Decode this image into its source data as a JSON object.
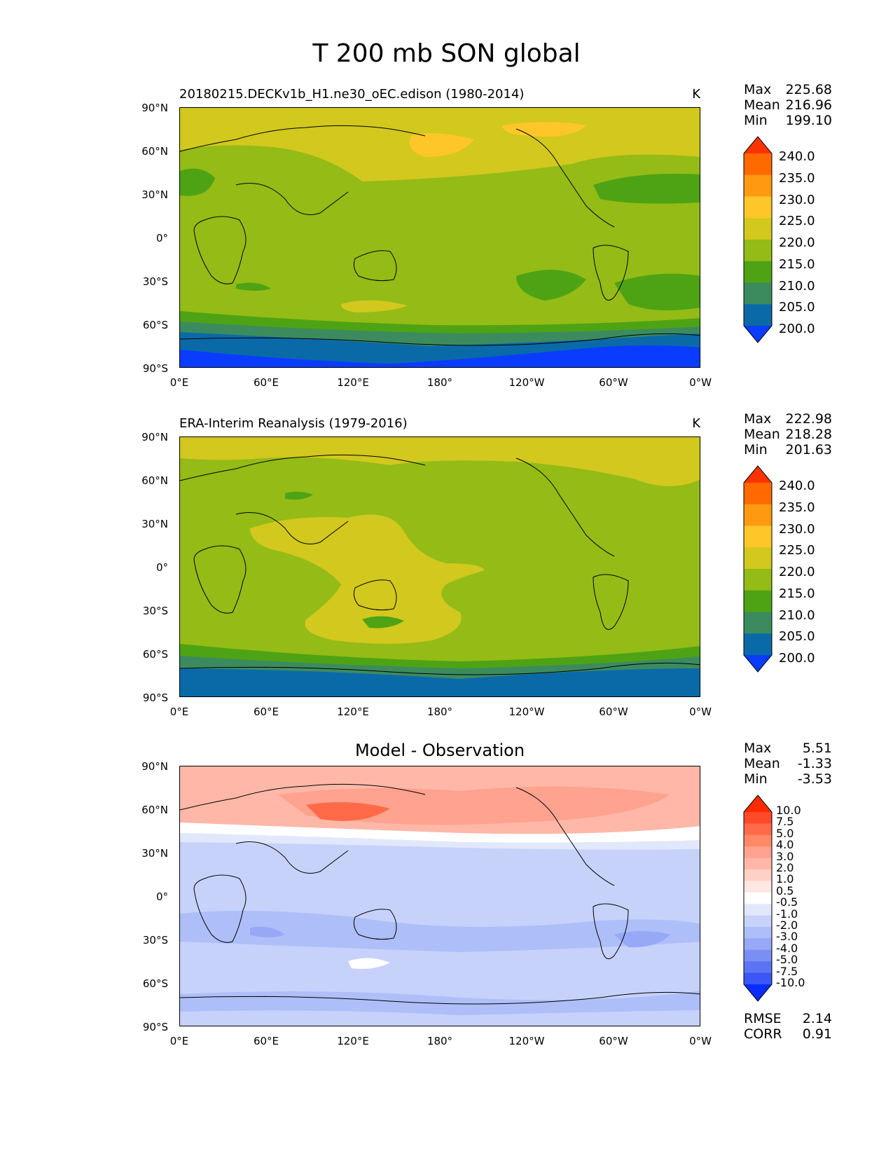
{
  "figure": {
    "title": "T 200 mb SON global",
    "lat_ticks": [
      "90°N",
      "60°N",
      "30°N",
      "0°",
      "30°S",
      "60°S",
      "90°S"
    ],
    "lon_ticks": [
      "0°E",
      "60°E",
      "120°E",
      "180°",
      "120°W",
      "60°W",
      "0°W"
    ]
  },
  "panels": [
    {
      "title_left": "20180215.DECKv1b_H1.ne30_oEC.edison (1980-2014)",
      "units": "K",
      "stats": {
        "max_label": "Max",
        "max": "225.68",
        "mean_label": "Mean",
        "mean": "216.96",
        "min_label": "Min",
        "min": "199.10"
      },
      "colorbar": {
        "levels": [
          "240.0",
          "235.0",
          "230.0",
          "225.0",
          "220.0",
          "215.0",
          "210.0",
          "205.0",
          "200.0"
        ],
        "colors": [
          "#ff3300",
          "#ff6a00",
          "#ff9a10",
          "#ffc62a",
          "#d2c81e",
          "#94bb16",
          "#4ea314",
          "#3c8b5e",
          "#0a6aa8",
          "#0a3cff"
        ]
      }
    },
    {
      "title_left": "ERA-Interim Reanalysis (1979-2016)",
      "units": "K",
      "stats": {
        "max_label": "Max",
        "max": "222.98",
        "mean_label": "Mean",
        "mean": "218.28",
        "min_label": "Min",
        "min": "201.63"
      },
      "colorbar": {
        "levels": [
          "240.0",
          "235.0",
          "230.0",
          "225.0",
          "220.0",
          "215.0",
          "210.0",
          "205.0",
          "200.0"
        ],
        "colors": [
          "#ff3300",
          "#ff6a00",
          "#ff9a10",
          "#ffc62a",
          "#d2c81e",
          "#94bb16",
          "#4ea314",
          "#3c8b5e",
          "#0a6aa8",
          "#0a3cff"
        ]
      }
    },
    {
      "title_center": "Model - Observation",
      "stats": {
        "max_label": "Max",
        "max": "5.51",
        "mean_label": "Mean",
        "mean": "-1.33",
        "min_label": "Min",
        "min": "-3.53"
      },
      "colorbar": {
        "levels": [
          "10.0",
          "7.5",
          "5.0",
          "4.0",
          "3.0",
          "2.0",
          "1.0",
          "0.5",
          "-0.5",
          "-1.0",
          "-2.0",
          "-3.0",
          "-4.0",
          "-5.0",
          "-7.5",
          "-10.0"
        ],
        "colors": [
          "#ff2a00",
          "#ff4a2a",
          "#ff6a48",
          "#ff8866",
          "#ffa290",
          "#ffb8a8",
          "#ffd0c6",
          "#ffe8e2",
          "#ffffff",
          "#e2e8fc",
          "#c6d2fa",
          "#aebef8",
          "#96a8f6",
          "#7a8ff4",
          "#5c74f4",
          "#3a56f6",
          "#0a2cff"
        ]
      },
      "rmse_label": "RMSE",
      "rmse": "2.14",
      "corr_label": "CORR",
      "corr": "0.91"
    }
  ]
}
